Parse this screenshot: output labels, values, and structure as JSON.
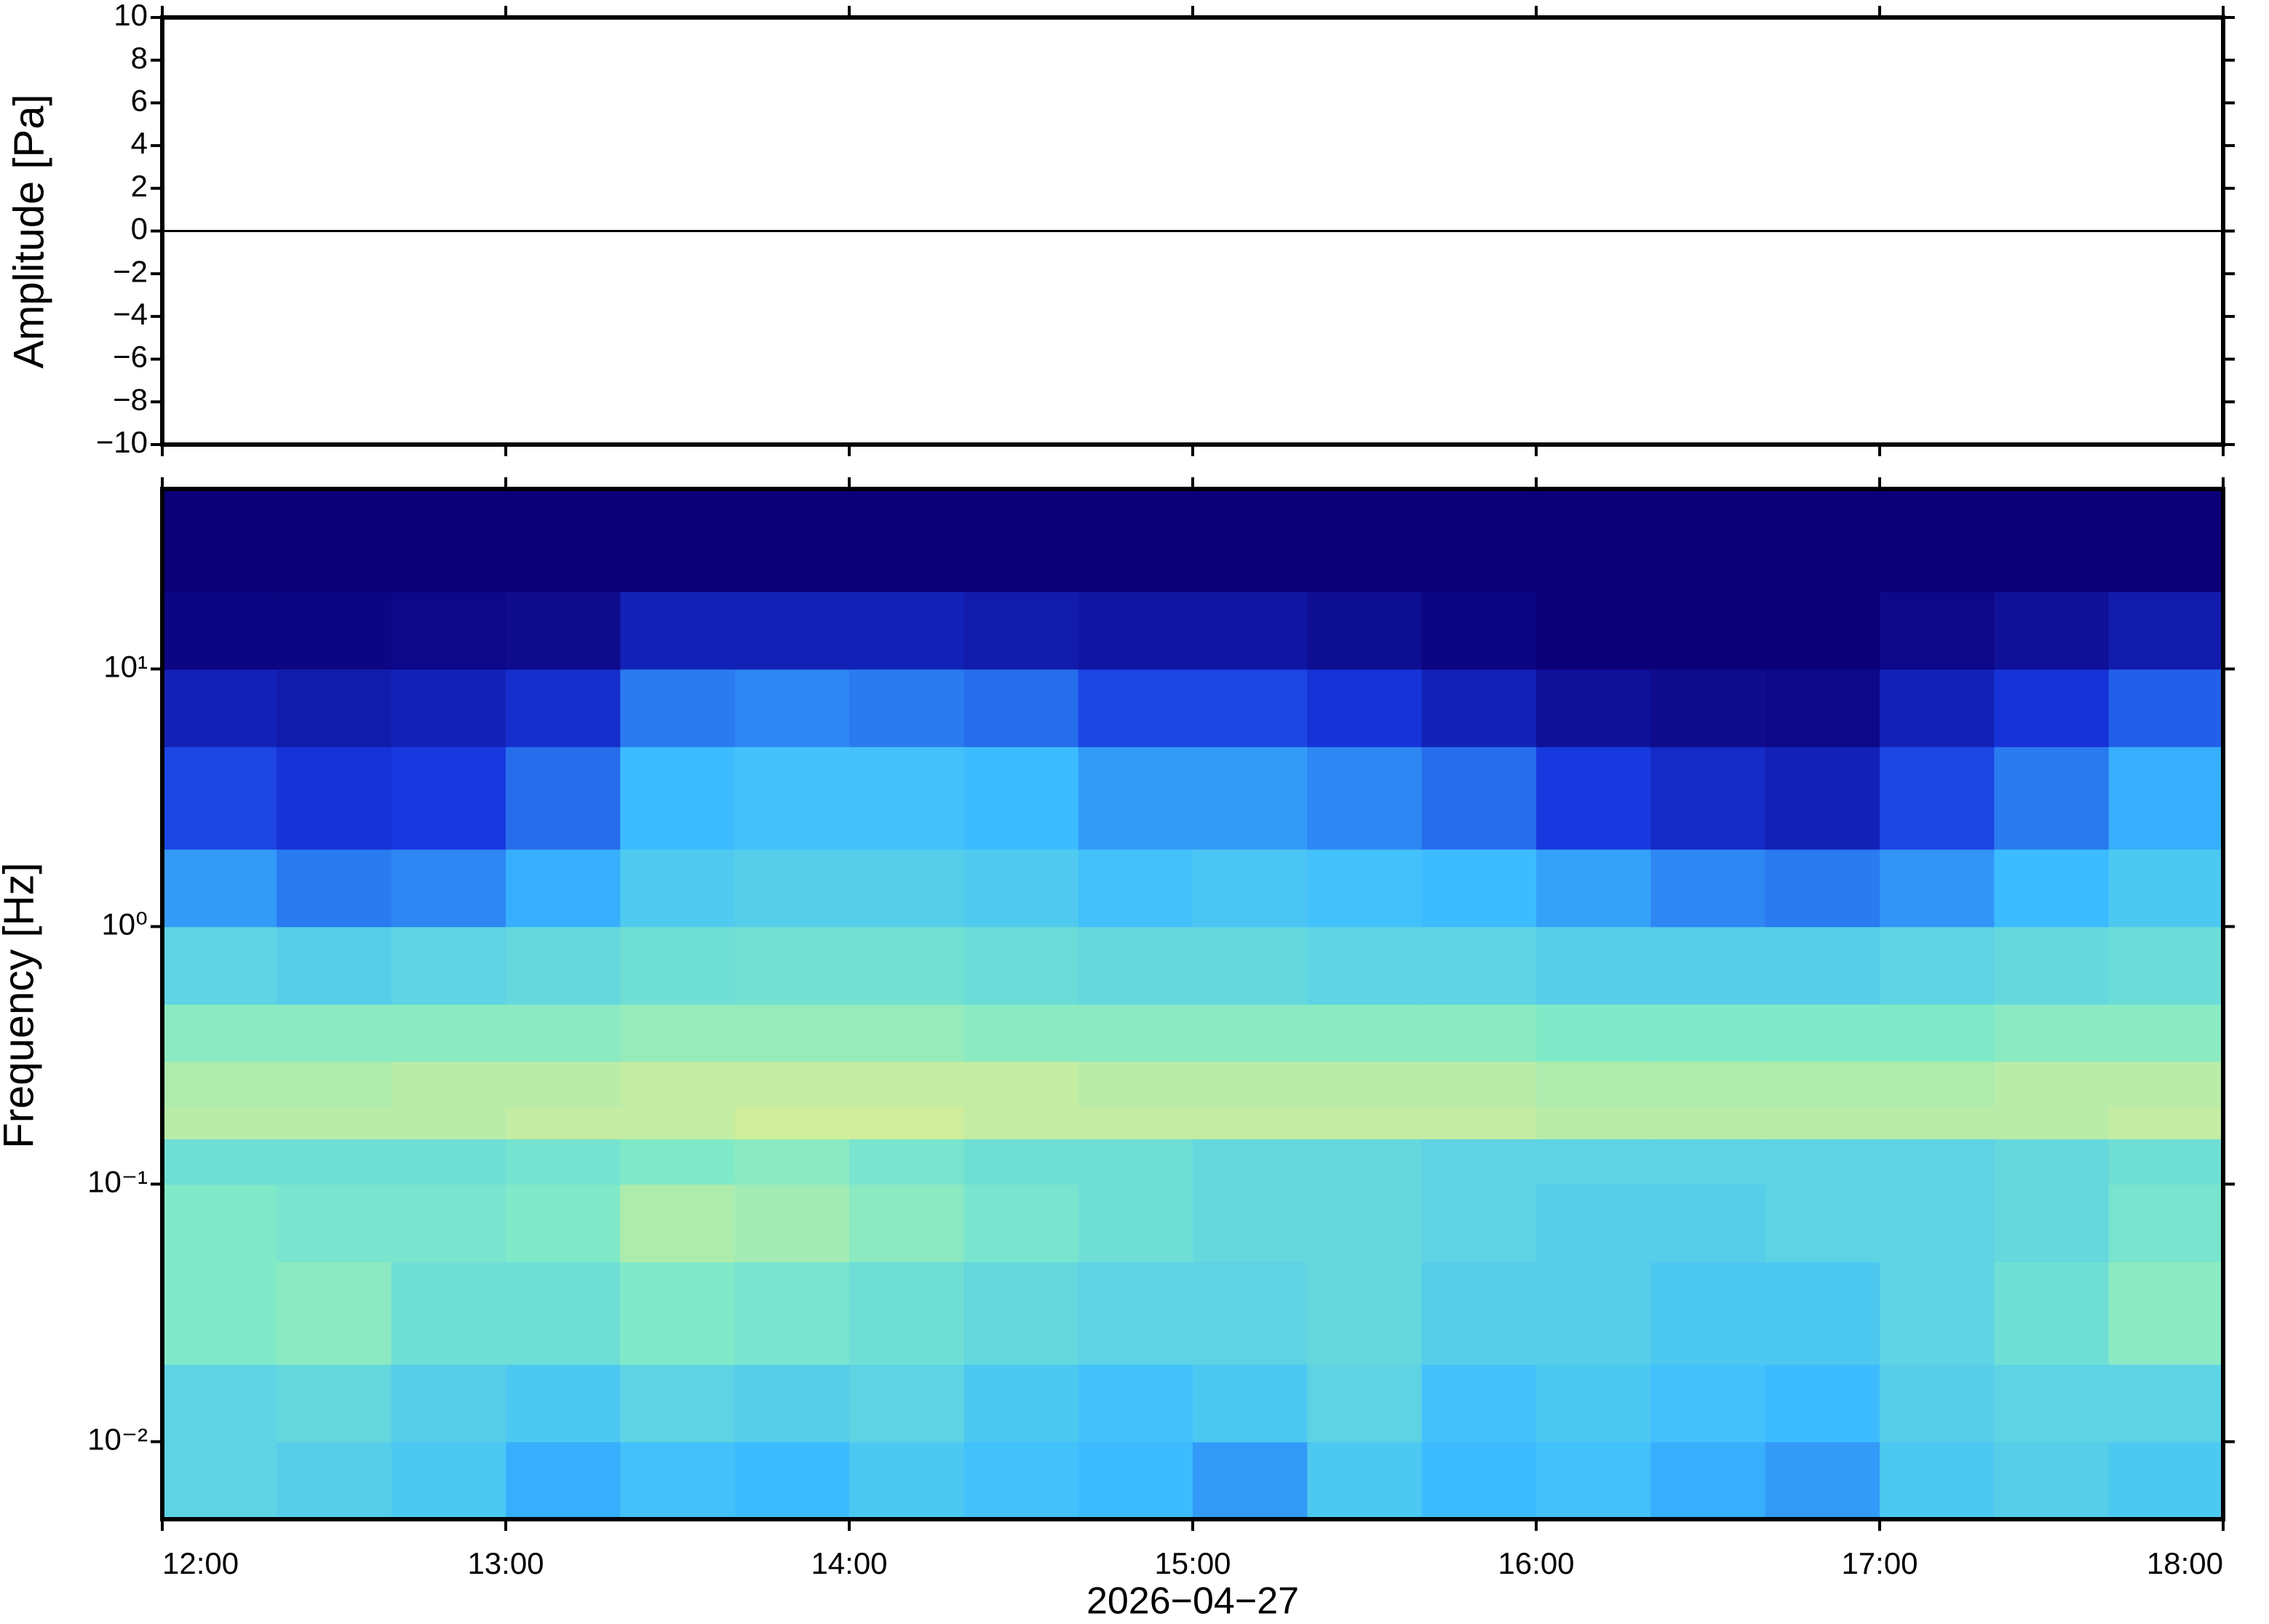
{
  "chart_data": [
    {
      "type": "line",
      "ylabel": "Amplitude [Pa]",
      "xlim": [
        "12:00",
        "18:00"
      ],
      "ylim": [
        -10,
        10
      ],
      "yticks": [
        {
          "value": -10,
          "label": "−10"
        },
        {
          "value": -8,
          "label": "−8"
        },
        {
          "value": -6,
          "label": "−6"
        },
        {
          "value": -4,
          "label": "−4"
        },
        {
          "value": -2,
          "label": "−2"
        },
        0,
        2,
        4,
        6,
        8,
        10
      ],
      "series": [
        {
          "color": "#000000",
          "x": [
            "12:00",
            "12:30",
            "13:00",
            "13:30",
            "14:00",
            "14:30",
            "15:00",
            "15:30",
            "16:00",
            "16:30",
            "17:00",
            "17:30",
            "18:00"
          ],
          "values": [
            0,
            0,
            0,
            0,
            0,
            0,
            0,
            0,
            0,
            0,
            0,
            0,
            0
          ]
        }
      ]
    },
    {
      "type": "heatmap",
      "xlabel": "2026−04−27",
      "ylabel": "Frequency [Hz]",
      "xlim": [
        "12:00",
        "18:00"
      ],
      "xticks": [
        "12:00",
        "13:00",
        "14:00",
        "15:00",
        "16:00",
        "17:00",
        "18:00"
      ],
      "ylim": [
        0.005,
        50
      ],
      "yscale": "log",
      "yticks": [
        {
          "value": 0.01,
          "label": "10⁻²"
        },
        {
          "value": 0.1,
          "label": "10⁻¹"
        },
        {
          "value": 1,
          "label": "10⁰"
        },
        {
          "value": 10,
          "label": "10¹"
        }
      ],
      "x_edges": [
        "12:00",
        "12:20",
        "12:40",
        "13:00",
        "13:20",
        "13:40",
        "14:00",
        "14:20",
        "14:40",
        "15:00",
        "15:20",
        "15:40",
        "16:00",
        "16:20",
        "16:40",
        "17:00",
        "17:20",
        "17:40",
        "18:00"
      ],
      "y_edges": [
        0.005,
        0.01,
        0.02,
        0.05,
        0.1,
        0.15,
        0.2,
        0.3,
        0.5,
        1,
        2,
        5,
        10,
        20,
        50
      ],
      "zlim": [
        0,
        1
      ],
      "colormap": [
        "#0b0078",
        "#1838e0",
        "#3cbcff",
        "#80eac8",
        "#f2ee88",
        "#f08a50"
      ],
      "values": [
        [
          0.5,
          0.48,
          0.45,
          0.38,
          0.42,
          0.4,
          0.45,
          0.42,
          0.4,
          0.35,
          0.45,
          0.4,
          0.42,
          0.38,
          0.35,
          0.45,
          0.48,
          0.45
        ],
        [
          0.5,
          0.52,
          0.48,
          0.45,
          0.5,
          0.48,
          0.5,
          0.45,
          0.42,
          0.45,
          0.5,
          0.42,
          0.45,
          0.42,
          0.4,
          0.48,
          0.5,
          0.5
        ],
        [
          0.6,
          0.62,
          0.55,
          0.55,
          0.6,
          0.58,
          0.55,
          0.52,
          0.5,
          0.5,
          0.52,
          0.48,
          0.48,
          0.45,
          0.45,
          0.5,
          0.55,
          0.62
        ],
        [
          0.6,
          0.58,
          0.58,
          0.6,
          0.68,
          0.66,
          0.62,
          0.58,
          0.55,
          0.52,
          0.52,
          0.5,
          0.48,
          0.48,
          0.5,
          0.5,
          0.52,
          0.58
        ],
        [
          0.55,
          0.55,
          0.55,
          0.57,
          0.6,
          0.62,
          0.58,
          0.55,
          0.55,
          0.52,
          0.52,
          0.5,
          0.5,
          0.5,
          0.5,
          0.5,
          0.52,
          0.55
        ],
        [
          0.7,
          0.7,
          0.7,
          0.72,
          0.72,
          0.74,
          0.74,
          0.72,
          0.72,
          0.72,
          0.72,
          0.72,
          0.7,
          0.7,
          0.7,
          0.7,
          0.7,
          0.72
        ],
        [
          0.68,
          0.68,
          0.7,
          0.7,
          0.72,
          0.72,
          0.72,
          0.72,
          0.7,
          0.7,
          0.7,
          0.7,
          0.68,
          0.68,
          0.68,
          0.68,
          0.7,
          0.7
        ],
        [
          0.62,
          0.62,
          0.62,
          0.62,
          0.64,
          0.64,
          0.64,
          0.62,
          0.62,
          0.62,
          0.62,
          0.62,
          0.6,
          0.6,
          0.6,
          0.6,
          0.62,
          0.62
        ],
        [
          0.5,
          0.48,
          0.5,
          0.52,
          0.55,
          0.56,
          0.56,
          0.54,
          0.52,
          0.52,
          0.5,
          0.5,
          0.48,
          0.48,
          0.48,
          0.5,
          0.52,
          0.54
        ],
        [
          0.35,
          0.3,
          0.32,
          0.38,
          0.46,
          0.48,
          0.48,
          0.46,
          0.42,
          0.44,
          0.42,
          0.4,
          0.36,
          0.32,
          0.3,
          0.34,
          0.4,
          0.45
        ],
        [
          0.22,
          0.18,
          0.2,
          0.28,
          0.4,
          0.42,
          0.42,
          0.4,
          0.35,
          0.35,
          0.32,
          0.28,
          0.2,
          0.15,
          0.12,
          0.22,
          0.3,
          0.38
        ],
        [
          0.12,
          0.1,
          0.12,
          0.16,
          0.3,
          0.32,
          0.3,
          0.28,
          0.22,
          0.22,
          0.18,
          0.12,
          0.06,
          0.04,
          0.03,
          0.12,
          0.18,
          0.26
        ],
        [
          0.02,
          0.02,
          0.03,
          0.04,
          0.12,
          0.12,
          0.12,
          0.1,
          0.08,
          0.08,
          0.05,
          0.02,
          0,
          0,
          0,
          0.03,
          0.06,
          0.1
        ],
        [
          0,
          0,
          0,
          0,
          0,
          0,
          0,
          0,
          0,
          0,
          0,
          0,
          0,
          0,
          0,
          0,
          0,
          0
        ]
      ]
    }
  ]
}
